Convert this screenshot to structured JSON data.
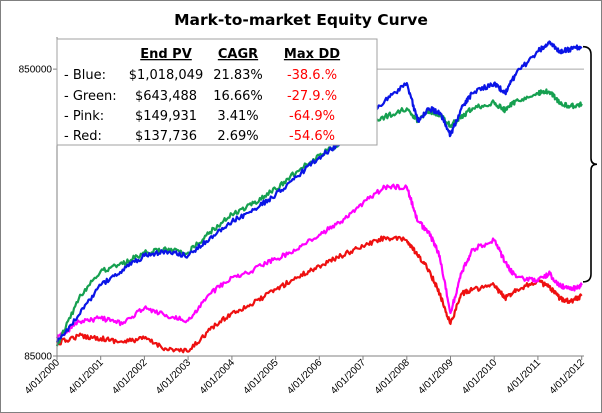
{
  "chart_data": {
    "type": "line",
    "title": "Mark-to-market Equity Curve",
    "y_scale": "log",
    "ylim": [
      85000,
      1100000
    ],
    "yticks": [
      {
        "value": 85000,
        "label": "85000"
      },
      {
        "value": 850000,
        "label": "850000"
      }
    ],
    "xlim": [
      "2000-04-01",
      "2012-04-20"
    ],
    "xticks": [
      "4/01/2000",
      "4/01/2001",
      "4/01/2002",
      "4/01/2003",
      "4/01/2004",
      "4/01/2005",
      "4/01/2006",
      "4/01/2007",
      "4/01/2008",
      "4/01/2009",
      "4/01/2010",
      "4/01/2011",
      "4/01/2012"
    ],
    "grid": "horizontal line at 850000",
    "series": [
      {
        "key": "blue",
        "color": "#0a14e6",
        "points": [
          [
            "2000-04-01",
            95000
          ],
          [
            "2000-10-01",
            118000
          ],
          [
            "2001-04-01",
            150000
          ],
          [
            "2001-10-01",
            170000
          ],
          [
            "2002-04-01",
            190000
          ],
          [
            "2002-10-01",
            197000
          ],
          [
            "2003-04-01",
            190000
          ],
          [
            "2003-10-01",
            220000
          ],
          [
            "2004-04-01",
            250000
          ],
          [
            "2004-10-01",
            275000
          ],
          [
            "2005-04-01",
            310000
          ],
          [
            "2005-10-01",
            360000
          ],
          [
            "2006-04-01",
            420000
          ],
          [
            "2006-10-01",
            470000
          ],
          [
            "2007-04-01",
            540000
          ],
          [
            "2007-10-01",
            660000
          ],
          [
            "2008-04-01",
            760000
          ],
          [
            "2008-07-01",
            560000
          ],
          [
            "2008-10-01",
            620000
          ],
          [
            "2009-01-01",
            600000
          ],
          [
            "2009-04-01",
            500000
          ],
          [
            "2009-07-01",
            620000
          ],
          [
            "2009-10-01",
            700000
          ],
          [
            "2010-04-01",
            760000
          ],
          [
            "2010-07-01",
            700000
          ],
          [
            "2010-10-01",
            820000
          ],
          [
            "2011-04-01",
            980000
          ],
          [
            "2011-07-01",
            1050000
          ],
          [
            "2011-10-01",
            980000
          ],
          [
            "2012-01-01",
            1000000
          ],
          [
            "2012-04-01",
            1018049
          ]
        ]
      },
      {
        "key": "green",
        "color": "#16a050",
        "points": [
          [
            "2000-04-01",
            92000
          ],
          [
            "2000-10-01",
            135000
          ],
          [
            "2001-04-01",
            168000
          ],
          [
            "2001-10-01",
            178000
          ],
          [
            "2002-04-01",
            195000
          ],
          [
            "2002-10-01",
            200000
          ],
          [
            "2003-04-01",
            195000
          ],
          [
            "2003-10-01",
            230000
          ],
          [
            "2004-04-01",
            265000
          ],
          [
            "2004-10-01",
            290000
          ],
          [
            "2005-04-01",
            325000
          ],
          [
            "2005-10-01",
            375000
          ],
          [
            "2006-04-01",
            425000
          ],
          [
            "2006-10-01",
            470000
          ],
          [
            "2007-04-01",
            520000
          ],
          [
            "2007-10-01",
            580000
          ],
          [
            "2008-04-01",
            620000
          ],
          [
            "2008-07-01",
            560000
          ],
          [
            "2008-10-01",
            610000
          ],
          [
            "2009-01-01",
            590000
          ],
          [
            "2009-04-01",
            540000
          ],
          [
            "2009-07-01",
            580000
          ],
          [
            "2009-10-01",
            620000
          ],
          [
            "2010-04-01",
            650000
          ],
          [
            "2010-07-01",
            610000
          ],
          [
            "2010-10-01",
            660000
          ],
          [
            "2011-04-01",
            700000
          ],
          [
            "2011-07-01",
            710000
          ],
          [
            "2011-10-01",
            650000
          ],
          [
            "2012-01-01",
            630000
          ],
          [
            "2012-04-01",
            643488
          ]
        ]
      },
      {
        "key": "pink",
        "color": "#ff00ff",
        "points": [
          [
            "2000-04-01",
            98000
          ],
          [
            "2000-10-01",
            112000
          ],
          [
            "2001-04-01",
            115000
          ],
          [
            "2001-10-01",
            110000
          ],
          [
            "2002-04-01",
            125000
          ],
          [
            "2002-10-01",
            118000
          ],
          [
            "2003-04-01",
            113000
          ],
          [
            "2003-10-01",
            140000
          ],
          [
            "2004-04-01",
            160000
          ],
          [
            "2004-10-01",
            170000
          ],
          [
            "2005-04-01",
            185000
          ],
          [
            "2005-10-01",
            200000
          ],
          [
            "2006-04-01",
            225000
          ],
          [
            "2006-10-01",
            250000
          ],
          [
            "2007-04-01",
            290000
          ],
          [
            "2007-10-01",
            330000
          ],
          [
            "2008-04-01",
            330000
          ],
          [
            "2008-07-01",
            250000
          ],
          [
            "2008-10-01",
            230000
          ],
          [
            "2009-01-01",
            190000
          ],
          [
            "2009-04-01",
            120000
          ],
          [
            "2009-07-01",
            165000
          ],
          [
            "2009-10-01",
            200000
          ],
          [
            "2010-04-01",
            215000
          ],
          [
            "2010-07-01",
            180000
          ],
          [
            "2010-10-01",
            160000
          ],
          [
            "2011-04-01",
            155000
          ],
          [
            "2011-07-01",
            165000
          ],
          [
            "2011-10-01",
            150000
          ],
          [
            "2012-01-01",
            145000
          ],
          [
            "2012-04-01",
            149931
          ]
        ]
      },
      {
        "key": "red",
        "color": "#ee1010",
        "points": [
          [
            "2000-04-01",
            94000
          ],
          [
            "2000-10-01",
            100000
          ],
          [
            "2001-04-01",
            98000
          ],
          [
            "2001-10-01",
            95000
          ],
          [
            "2002-04-01",
            98000
          ],
          [
            "2002-10-01",
            90000
          ],
          [
            "2003-04-01",
            88000
          ],
          [
            "2003-10-01",
            105000
          ],
          [
            "2004-04-01",
            120000
          ],
          [
            "2004-10-01",
            130000
          ],
          [
            "2005-04-01",
            145000
          ],
          [
            "2005-10-01",
            160000
          ],
          [
            "2006-04-01",
            175000
          ],
          [
            "2006-10-01",
            190000
          ],
          [
            "2007-04-01",
            205000
          ],
          [
            "2007-10-01",
            220000
          ],
          [
            "2008-04-01",
            215000
          ],
          [
            "2008-07-01",
            190000
          ],
          [
            "2008-10-01",
            170000
          ],
          [
            "2009-01-01",
            140000
          ],
          [
            "2009-04-01",
            110000
          ],
          [
            "2009-07-01",
            140000
          ],
          [
            "2009-10-01",
            145000
          ],
          [
            "2010-04-01",
            150000
          ],
          [
            "2010-07-01",
            135000
          ],
          [
            "2010-10-01",
            145000
          ],
          [
            "2011-04-01",
            155000
          ],
          [
            "2011-07-01",
            148000
          ],
          [
            "2011-10-01",
            135000
          ],
          [
            "2012-01-01",
            132000
          ],
          [
            "2012-04-01",
            137736
          ]
        ]
      }
    ]
  },
  "legend": {
    "headers": {
      "pv": "End PV",
      "cagr": "CAGR",
      "dd": "Max DD"
    },
    "dd_color": "#ff0000",
    "rows": [
      {
        "name": "- Blue:",
        "pv": "$1,018,049",
        "cagr": "21.83%",
        "dd": "-38.6.%"
      },
      {
        "name": "- Green:",
        "pv": "$643,488",
        "cagr": "16.66%",
        "dd": "-27.9.%"
      },
      {
        "name": "- Pink:",
        "pv": "$149,931",
        "cagr": "3.41%",
        "dd": "-64.9%"
      },
      {
        "name": "- Red:",
        "pv": "$137,736",
        "cagr": "2.69%",
        "dd": "-54.6%"
      }
    ]
  }
}
